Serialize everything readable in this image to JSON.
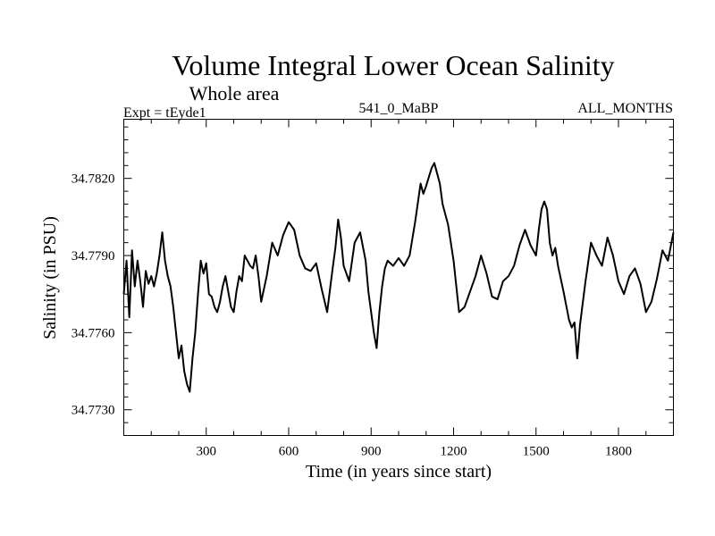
{
  "chart_data": {
    "type": "line",
    "title": "Volume Integral Lower Ocean Salinity",
    "subtitle": "Whole area",
    "left_label": "Expt = tEyde1",
    "center_label": "541_0_MaBP",
    "right_label": "ALL_MONTHS",
    "xlabel": "Time (in years since start)",
    "ylabel": "Salinity (in PSU)",
    "xlim": [
      0,
      2000
    ],
    "ylim": [
      34.772,
      34.7843
    ],
    "x_ticks": [
      300,
      600,
      900,
      1200,
      1500,
      1800
    ],
    "x_tick_labels": [
      "300",
      "600",
      "900",
      "1200",
      "1500",
      "1800"
    ],
    "y_ticks": [
      34.773,
      34.776,
      34.779,
      34.782
    ],
    "y_tick_labels": [
      "34.7730",
      "34.7760",
      "34.7790",
      "34.7820"
    ],
    "series": [
      {
        "name": "Salinity",
        "color": "#000000",
        "x": [
          0,
          10,
          20,
          30,
          40,
          50,
          60,
          70,
          80,
          90,
          100,
          110,
          120,
          130,
          140,
          150,
          160,
          170,
          180,
          190,
          200,
          210,
          220,
          230,
          240,
          250,
          260,
          270,
          280,
          290,
          300,
          310,
          320,
          330,
          340,
          350,
          360,
          370,
          380,
          390,
          400,
          410,
          420,
          430,
          440,
          450,
          460,
          470,
          480,
          490,
          500,
          520,
          540,
          560,
          580,
          600,
          620,
          640,
          660,
          680,
          700,
          720,
          740,
          760,
          770,
          780,
          790,
          800,
          820,
          840,
          860,
          880,
          890,
          900,
          910,
          920,
          930,
          940,
          950,
          960,
          980,
          1000,
          1020,
          1040,
          1060,
          1080,
          1090,
          1100,
          1120,
          1130,
          1140,
          1150,
          1160,
          1180,
          1200,
          1210,
          1220,
          1240,
          1260,
          1280,
          1300,
          1320,
          1340,
          1360,
          1380,
          1400,
          1420,
          1440,
          1460,
          1480,
          1500,
          1510,
          1520,
          1530,
          1540,
          1550,
          1560,
          1570,
          1580,
          1600,
          1620,
          1630,
          1640,
          1650,
          1660,
          1680,
          1700,
          1720,
          1740,
          1760,
          1780,
          1800,
          1820,
          1840,
          1860,
          1880,
          1900,
          1920,
          1940,
          1960,
          1980,
          2000
        ],
        "values": [
          34.7775,
          34.7788,
          34.7766,
          34.7792,
          34.7778,
          34.7788,
          34.778,
          34.777,
          34.7784,
          34.7779,
          34.7782,
          34.7778,
          34.7783,
          34.779,
          34.7799,
          34.7788,
          34.7782,
          34.7778,
          34.777,
          34.776,
          34.775,
          34.7755,
          34.7745,
          34.774,
          34.7737,
          34.775,
          34.776,
          34.7775,
          34.7788,
          34.7783,
          34.7787,
          34.7775,
          34.7774,
          34.777,
          34.7768,
          34.7772,
          34.7778,
          34.7782,
          34.7776,
          34.777,
          34.7768,
          34.7776,
          34.7782,
          34.778,
          34.779,
          34.7788,
          34.7786,
          34.7785,
          34.779,
          34.7782,
          34.7772,
          34.7782,
          34.7795,
          34.779,
          34.7798,
          34.7803,
          34.78,
          34.779,
          34.7785,
          34.7784,
          34.7787,
          34.7777,
          34.7768,
          34.7785,
          34.7793,
          34.7804,
          34.7797,
          34.7786,
          34.778,
          34.7795,
          34.7799,
          34.7788,
          34.7776,
          34.7768,
          34.776,
          34.7754,
          34.7768,
          34.7778,
          34.7785,
          34.7788,
          34.7786,
          34.7789,
          34.7786,
          34.779,
          34.7803,
          34.7818,
          34.7814,
          34.7817,
          34.7824,
          34.7826,
          34.7822,
          34.7818,
          34.781,
          34.7802,
          34.7788,
          34.7778,
          34.7768,
          34.777,
          34.7776,
          34.7782,
          34.779,
          34.7783,
          34.7774,
          34.7773,
          34.778,
          34.7782,
          34.7786,
          34.7794,
          34.78,
          34.7794,
          34.779,
          34.78,
          34.7808,
          34.7811,
          34.7808,
          34.7795,
          34.779,
          34.7793,
          34.7786,
          34.7776,
          34.7765,
          34.7762,
          34.7764,
          34.775,
          34.7763,
          34.778,
          34.7795,
          34.779,
          34.7786,
          34.7797,
          34.779,
          34.778,
          34.7775,
          34.7782,
          34.7785,
          34.7779,
          34.7768,
          34.7772,
          34.7781,
          34.7792,
          34.7788,
          34.7799
        ]
      }
    ]
  }
}
